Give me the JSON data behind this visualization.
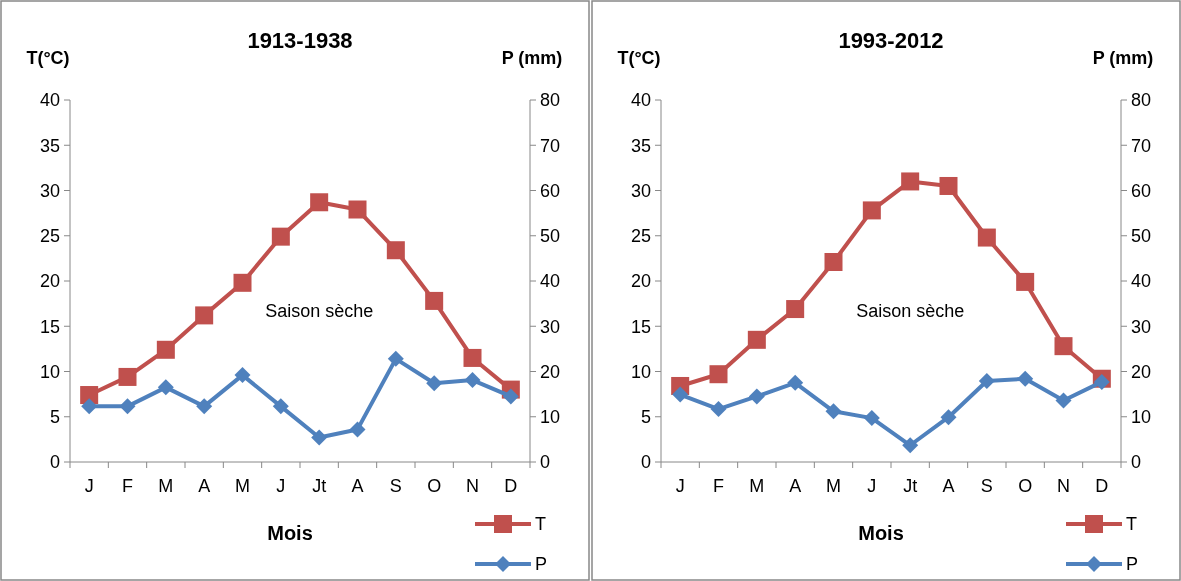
{
  "chart_data": [
    {
      "type": "line",
      "title": "1913-1938",
      "xlabel": "Mois",
      "ylabel": "T(°C)",
      "y2label": "P (mm)",
      "categories": [
        "J",
        "F",
        "M",
        "A",
        "M",
        "J",
        "Jt",
        "A",
        "S",
        "O",
        "N",
        "D"
      ],
      "ylim": [
        0,
        40
      ],
      "yticks": [
        0,
        5,
        10,
        15,
        20,
        25,
        30,
        35,
        40
      ],
      "y2lim": [
        0,
        80
      ],
      "y2ticks": [
        0,
        10,
        20,
        30,
        40,
        50,
        60,
        70,
        80
      ],
      "legend": "bottom right",
      "grid": false,
      "annotations": [
        "Saison sèche"
      ],
      "series": [
        {
          "name": "T",
          "color": "#c0504d",
          "marker": "square",
          "values": [
            7.4,
            9.4,
            12.4,
            16.2,
            19.8,
            24.9,
            28.7,
            27.9,
            23.4,
            17.8,
            11.5,
            8.0
          ]
        },
        {
          "name": "P",
          "color": "#4f81bd",
          "marker": "diamond",
          "axis": "y2",
          "values": [
            12.3,
            12.3,
            16.5,
            12.3,
            19.2,
            12.3,
            5.4,
            7.2,
            22.8,
            17.4,
            18.1,
            14.5
          ]
        }
      ]
    },
    {
      "type": "line",
      "title": "1993-2012",
      "xlabel": "Mois",
      "ylabel": "T(°C)",
      "y2label": "P (mm)",
      "categories": [
        "J",
        "F",
        "M",
        "A",
        "M",
        "J",
        "Jt",
        "A",
        "S",
        "O",
        "N",
        "D"
      ],
      "ylim": [
        0,
        40
      ],
      "yticks": [
        0,
        5,
        10,
        15,
        20,
        25,
        30,
        35,
        40
      ],
      "y2lim": [
        0,
        80
      ],
      "y2ticks": [
        0,
        10,
        20,
        30,
        40,
        50,
        60,
        70,
        80
      ],
      "legend": "bottom right",
      "grid": false,
      "annotations": [
        "Saison sèche"
      ],
      "series": [
        {
          "name": "T",
          "color": "#c0504d",
          "marker": "square",
          "values": [
            8.4,
            9.7,
            13.5,
            16.9,
            22.1,
            27.8,
            31.0,
            30.5,
            24.8,
            19.9,
            12.8,
            9.2
          ]
        },
        {
          "name": "P",
          "color": "#4f81bd",
          "marker": "diamond",
          "axis": "y2",
          "values": [
            14.9,
            11.7,
            14.5,
            17.5,
            11.2,
            9.7,
            3.7,
            9.9,
            17.9,
            18.4,
            13.6,
            17.7
          ]
        }
      ]
    }
  ]
}
